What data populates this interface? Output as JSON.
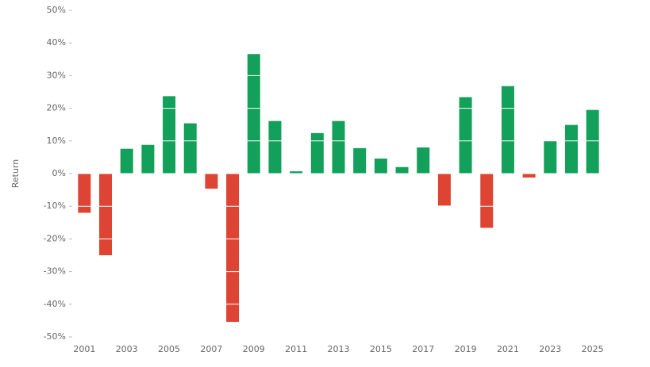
{
  "chart_data": {
    "type": "bar",
    "y_label": "Return",
    "categories": [
      "2001",
      null,
      "2003",
      null,
      "2005",
      null,
      "2007",
      null,
      "2009",
      null,
      "2011",
      null,
      "2013",
      null,
      "2015",
      null,
      "2017",
      null,
      "2019",
      null,
      "2021",
      null,
      "2023",
      null,
      "2025"
    ],
    "values": [
      -12,
      -25,
      7.6,
      8.8,
      23.7,
      15.4,
      -4.6,
      -45.4,
      36.6,
      16.1,
      0.7,
      12.4,
      16.1,
      7.8,
      4.6,
      2.0,
      8.0,
      -9.8,
      23.4,
      -16.6,
      26.8,
      -1.2,
      10,
      14.9,
      19.5
    ],
    "positive_color": "#12a05a",
    "negative_color": "#dd4433",
    "ylim": [
      -50,
      50
    ],
    "yticks": [
      {
        "value": -50,
        "label": "-50%"
      },
      {
        "value": -40,
        "label": "-40%"
      },
      {
        "value": -30,
        "label": "-30%"
      },
      {
        "value": -20,
        "label": "-20%"
      },
      {
        "value": -10,
        "label": "-10%"
      },
      {
        "value": 0,
        "label": "0%"
      },
      {
        "value": 10,
        "label": "10%"
      },
      {
        "value": 20,
        "label": "20%"
      },
      {
        "value": 30,
        "label": "30%"
      },
      {
        "value": 40,
        "label": "40%"
      },
      {
        "value": 50,
        "label": "50%"
      }
    ],
    "grid": true
  }
}
